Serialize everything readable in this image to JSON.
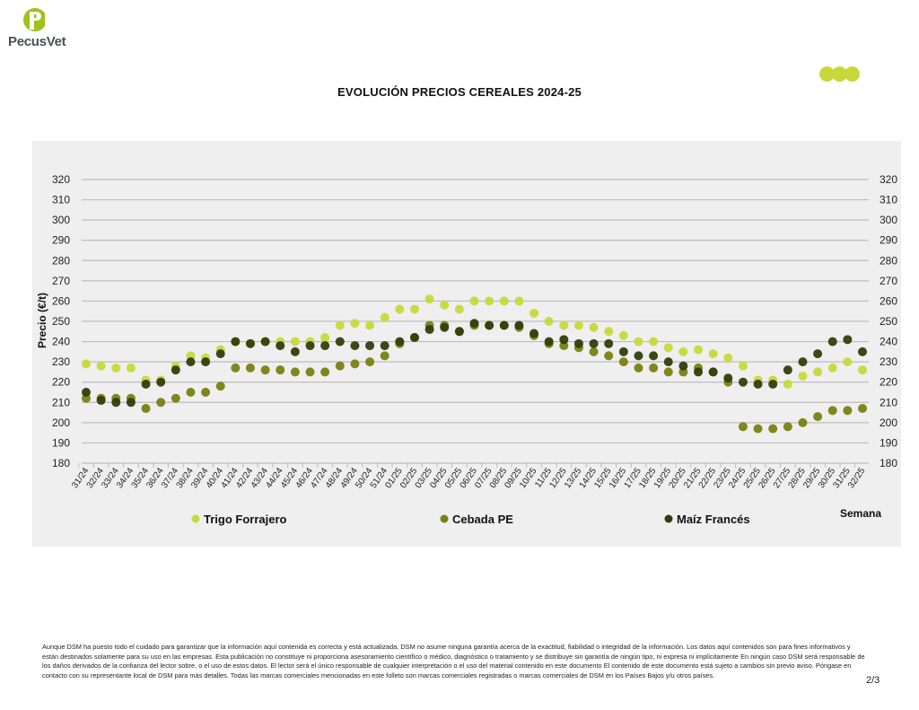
{
  "brand": {
    "name": "PecusVet"
  },
  "colors": {
    "trigo": "#c8d83a",
    "cebada": "#7a8011",
    "maiz": "#333d0b",
    "logo_green": "#9dc31c",
    "panel": "#efefef"
  },
  "chart_data": {
    "type": "scatter",
    "title": "EVOLUCIÓN PRECIOS CEREALES 2024-25",
    "xlabel": "Semana",
    "ylabel": "Precio (€/t)",
    "ylim": [
      180,
      320
    ],
    "yticks": [
      180,
      190,
      200,
      210,
      220,
      230,
      240,
      250,
      260,
      270,
      280,
      290,
      300,
      310,
      320
    ],
    "grid": true,
    "legend_position": "bottom",
    "categories": [
      "31/24",
      "32/24",
      "33/24",
      "34/24",
      "35/24",
      "36/24",
      "37/24",
      "38/24",
      "39/24",
      "40/24",
      "41/24",
      "42/24",
      "43/24",
      "44/24",
      "45/24",
      "46/24",
      "47/24",
      "48/24",
      "49/24",
      "50/24",
      "51/24",
      "01/25",
      "02/25",
      "03/25",
      "04/25",
      "05/25",
      "06/25",
      "07/25",
      "08/25",
      "09/25",
      "10/25",
      "11/25",
      "12/25",
      "13/25",
      "14/25",
      "15/25",
      "16/25",
      "17/25",
      "18/25",
      "19/25",
      "20/25",
      "21/25",
      "22/25",
      "23/25",
      "24/25",
      "25/25",
      "26/25",
      "27/25",
      "28/25",
      "29/25",
      "30/25",
      "31/25",
      "32/25"
    ],
    "series": [
      {
        "name": "Trigo Forrajero",
        "color": "#c8d83a",
        "values": [
          229,
          228,
          227,
          227,
          221,
          221,
          228,
          233,
          232,
          236,
          240,
          239,
          240,
          240,
          240,
          240,
          242,
          248,
          249,
          248,
          252,
          256,
          256,
          261,
          258,
          256,
          260,
          260,
          260,
          260,
          254,
          250,
          248,
          248,
          247,
          245,
          243,
          240,
          240,
          237,
          235,
          236,
          234,
          232,
          228,
          221,
          221,
          219,
          223,
          225,
          227,
          230,
          226
        ]
      },
      {
        "name": "Cebada PE",
        "color": "#7a8011",
        "values": [
          212,
          212,
          212,
          212,
          207,
          210,
          212,
          215,
          215,
          218,
          227,
          227,
          226,
          226,
          225,
          225,
          225,
          228,
          229,
          230,
          233,
          239,
          242,
          248,
          248,
          245,
          248,
          248,
          248,
          247,
          243,
          239,
          238,
          237,
          235,
          233,
          230,
          227,
          227,
          225,
          225,
          227,
          225,
          220,
          198,
          197,
          197,
          198,
          200,
          203,
          206,
          206,
          207
        ]
      },
      {
        "name": "Maíz Francés",
        "color": "#333d0b",
        "values": [
          215,
          211,
          210,
          210,
          219,
          220,
          226,
          230,
          230,
          234,
          240,
          239,
          240,
          238,
          235,
          238,
          238,
          240,
          238,
          238,
          238,
          240,
          242,
          246,
          247,
          245,
          249,
          248,
          248,
          248,
          244,
          240,
          241,
          239,
          239,
          239,
          235,
          233,
          233,
          230,
          228,
          225,
          225,
          222,
          220,
          219,
          219,
          226,
          230,
          234,
          240,
          241,
          235
        ]
      }
    ]
  },
  "footer": {
    "disclaimer": "Aunque DSM ha puesto todo el cuidado para garantizar que la información aquí contenida es correcta y está actualizada, DSM no asume ninguna garantía acerca de la exactitud, fiabilidad o integridad de la información. Los datos aquí contenidos son para fines informativos y están destinados solamente para su uso en las empresas. Esta publicación no constituye ni proporciona asesoramiento científico o médico, diagnóstico o tratamiento y se distribuye sin garantía de ningún tipo, ni expresa ni implícitamente En ningún caso DSM será responsable de los daños derivados de la confianza del lector sobre, o el uso de estos datos. El lector será el único responsable de cualquier interpretación o el uso del material contenido en este documento El contenido de este documento está sujeto a cambios sin previo aviso. Póngase en contacto con su representante local de DSM para más detalles. Todas las marcas comerciales mencionadas en este folleto son marcas comerciales registradas o marcas comerciales de DSM en los Países Bajos y/u otros países.",
    "page": "2/3"
  }
}
